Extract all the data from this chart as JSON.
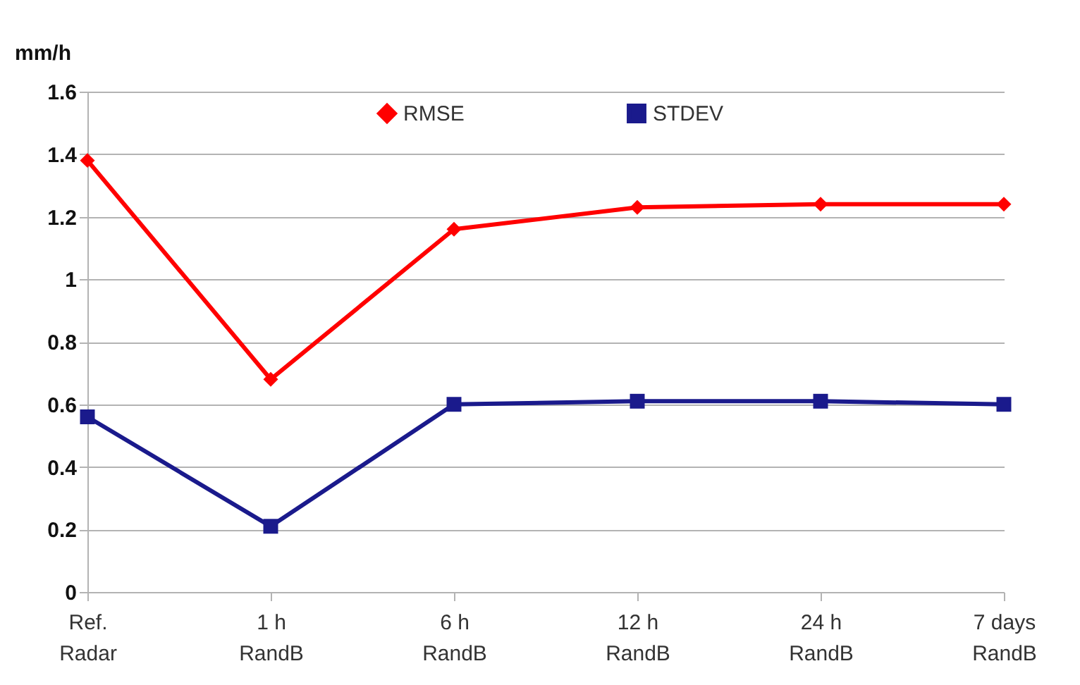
{
  "chart_data": {
    "type": "line",
    "ylabel": "mm/h",
    "categories": [
      "Ref.\nRadar",
      "1 h\nRandB",
      "6 h\nRandB",
      "12 h\nRandB",
      "24 h\nRandB",
      "7 days\nRandB"
    ],
    "series": [
      {
        "name": "RMSE",
        "color": "#ff0000",
        "marker": "diamond",
        "values": [
          1.38,
          0.68,
          1.16,
          1.23,
          1.24,
          1.24
        ]
      },
      {
        "name": "STDEV",
        "color": "#1a1a8c",
        "marker": "square",
        "values": [
          0.56,
          0.21,
          0.6,
          0.61,
          0.61,
          0.6
        ]
      }
    ],
    "ylim": [
      0,
      1.6
    ],
    "yticks": [
      0,
      0.2,
      0.4,
      0.6,
      0.8,
      1,
      1.2,
      1.4,
      1.6
    ],
    "grid": "y",
    "legend": "top",
    "line_style": "solid"
  }
}
